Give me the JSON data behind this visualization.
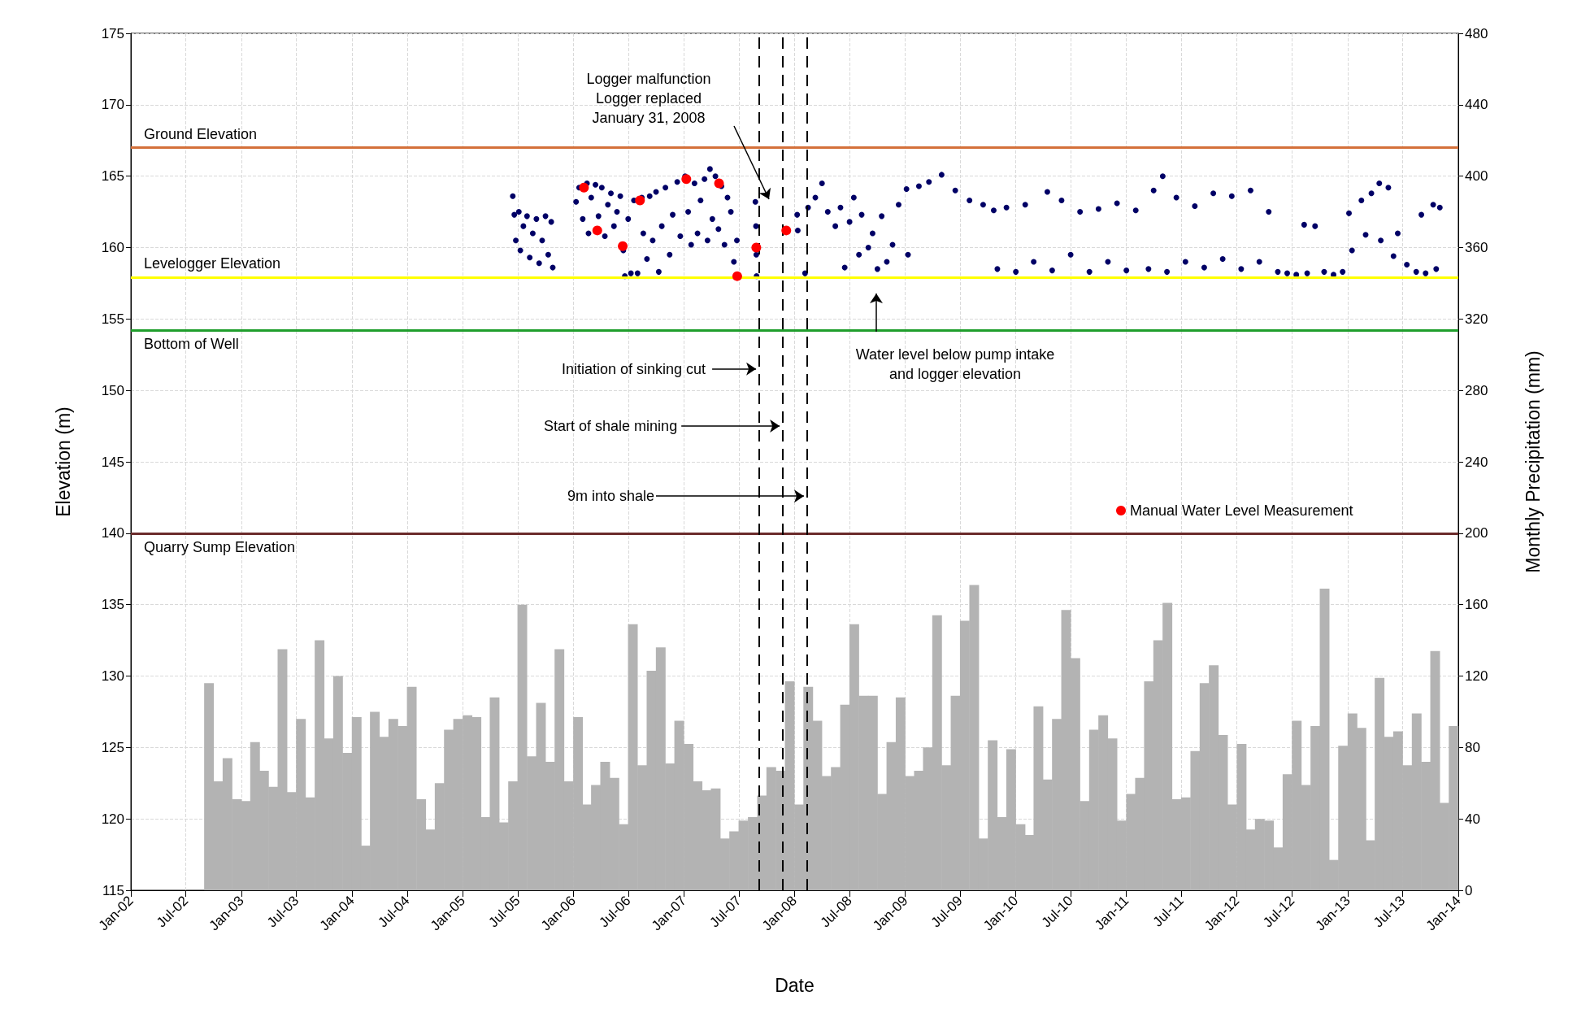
{
  "chart_data": {
    "type": "bar",
    "xlabel": "Date",
    "ylabel": "Elevation (m)",
    "y2label": "Monthly Precipitation (mm)",
    "xlim": [
      "2002-01-01",
      "2014-01-01"
    ],
    "xticks": [
      {
        "value": "2002-01",
        "label": "Jan-02"
      },
      {
        "value": "2002-07",
        "label": "Jul-02"
      },
      {
        "value": "2003-01",
        "label": "Jan-03"
      },
      {
        "value": "2003-07",
        "label": "Jul-03"
      },
      {
        "value": "2004-01",
        "label": "Jan-04"
      },
      {
        "value": "2004-07",
        "label": "Jul-04"
      },
      {
        "value": "2005-01",
        "label": "Jan-05"
      },
      {
        "value": "2005-07",
        "label": "Jul-05"
      },
      {
        "value": "2006-01",
        "label": "Jan-06"
      },
      {
        "value": "2006-07",
        "label": "Jul-06"
      },
      {
        "value": "2007-01",
        "label": "Jan-07"
      },
      {
        "value": "2007-07",
        "label": "Jul-07"
      },
      {
        "value": "2008-01",
        "label": "Jan-08"
      },
      {
        "value": "2008-07",
        "label": "Jul-08"
      },
      {
        "value": "2009-01",
        "label": "Jan-09"
      },
      {
        "value": "2009-07",
        "label": "Jul-09"
      },
      {
        "value": "2010-01",
        "label": "Jan-10"
      },
      {
        "value": "2010-07",
        "label": "Jul-10"
      },
      {
        "value": "2011-01",
        "label": "Jan-11"
      },
      {
        "value": "2011-07",
        "label": "Jul-11"
      },
      {
        "value": "2012-01",
        "label": "Jan-12"
      },
      {
        "value": "2012-07",
        "label": "Jul-12"
      },
      {
        "value": "2013-01",
        "label": "Jan-13"
      },
      {
        "value": "2013-07",
        "label": "Jul-13"
      },
      {
        "value": "2014-01",
        "label": "Jan-14"
      }
    ],
    "ylim": [
      115,
      175
    ],
    "yticks": [
      115,
      120,
      125,
      130,
      135,
      140,
      145,
      150,
      155,
      160,
      165,
      170,
      175
    ],
    "y2lim": [
      0,
      480
    ],
    "y2ticks": [
      0,
      40,
      80,
      120,
      160,
      200,
      240,
      280,
      320,
      360,
      400,
      440,
      480
    ],
    "grid": true,
    "legend": "right",
    "marker": "circle",
    "series": [
      {
        "axis": "y2",
        "color": "#b3b3b3",
        "x": [
          "2002-09",
          "2002-10",
          "2002-11",
          "2002-12",
          "2003-01",
          "2003-02",
          "2003-03",
          "2003-04",
          "2003-05",
          "2003-06",
          "2003-07",
          "2003-08",
          "2003-09",
          "2003-10",
          "2003-11",
          "2003-12",
          "2004-01",
          "2004-02",
          "2004-03",
          "2004-04",
          "2004-05",
          "2004-06",
          "2004-07",
          "2004-08",
          "2004-09",
          "2004-10",
          "2004-11",
          "2004-12",
          "2005-01",
          "2005-02",
          "2005-03",
          "2005-04",
          "2005-05",
          "2005-06",
          "2005-07",
          "2005-08",
          "2005-09",
          "2005-10",
          "2005-11",
          "2005-12",
          "2006-01",
          "2006-02",
          "2006-03",
          "2006-04",
          "2006-05",
          "2006-06",
          "2006-07",
          "2006-08",
          "2006-09",
          "2006-10",
          "2006-11",
          "2006-12",
          "2007-01",
          "2007-02",
          "2007-03",
          "2007-04",
          "2007-05",
          "2007-06",
          "2007-07",
          "2007-08",
          "2007-09",
          "2007-10",
          "2007-11",
          "2007-12",
          "2008-01",
          "2008-02",
          "2008-03",
          "2008-04",
          "2008-05",
          "2008-06",
          "2008-07",
          "2008-08",
          "2008-09",
          "2008-10",
          "2008-11",
          "2008-12",
          "2009-01",
          "2009-02",
          "2009-03",
          "2009-04",
          "2009-05",
          "2009-06",
          "2009-07",
          "2009-08",
          "2009-09",
          "2009-10",
          "2009-11",
          "2009-12",
          "2010-01",
          "2010-02",
          "2010-03",
          "2010-04",
          "2010-05",
          "2010-06",
          "2010-07",
          "2010-08",
          "2010-09",
          "2010-10",
          "2010-11",
          "2010-12",
          "2011-01",
          "2011-02",
          "2011-03",
          "2011-04",
          "2011-05",
          "2011-06",
          "2011-07",
          "2011-08",
          "2011-09",
          "2011-10",
          "2011-11",
          "2011-12",
          "2012-01",
          "2012-02",
          "2012-03",
          "2012-04",
          "2012-05",
          "2012-06",
          "2012-07",
          "2012-08",
          "2012-09",
          "2012-10",
          "2012-11",
          "2012-12",
          "2013-01",
          "2013-02",
          "2013-03",
          "2013-04",
          "2013-05",
          "2013-06",
          "2013-07",
          "2013-08",
          "2013-09",
          "2013-10",
          "2013-11",
          "2013-12"
        ],
        "values": [
          116,
          61,
          74,
          51,
          50,
          83,
          67,
          58,
          135,
          55,
          96,
          52,
          140,
          85,
          120,
          77,
          97,
          25,
          100,
          86,
          96,
          92,
          114,
          51,
          34,
          60,
          90,
          96,
          98,
          97,
          41,
          108,
          38,
          61,
          160,
          75,
          105,
          72,
          135,
          61,
          97,
          48,
          59,
          72,
          63,
          37,
          149,
          70,
          123,
          136,
          71,
          95,
          82,
          61,
          56,
          57,
          29,
          33,
          39,
          41,
          53,
          69,
          67,
          117,
          48,
          114,
          95,
          64,
          69,
          104,
          149,
          109,
          109,
          54,
          83,
          108,
          64,
          67,
          80,
          154,
          70,
          109,
          151,
          171,
          29,
          84,
          41,
          79,
          37,
          31,
          103,
          62,
          96,
          157,
          130,
          50,
          90,
          98,
          85,
          39,
          54,
          63,
          117,
          140,
          161,
          51,
          52,
          78,
          116,
          126,
          87,
          48,
          82,
          34,
          40,
          39,
          24,
          65,
          95,
          59,
          92,
          169,
          17,
          81,
          99,
          91,
          28,
          119,
          86,
          89,
          70,
          99,
          72,
          134,
          49,
          92
        ]
      },
      {
        "type": "scatter",
        "color": "#000066",
        "x": [
          "2005-06-15",
          "2005-06-20",
          "2005-06-25",
          "2005-07-05",
          "2005-07-10",
          "2005-07-20",
          "2005-08-01",
          "2005-08-10",
          "2005-08-20",
          "2005-09-01",
          "2005-09-10",
          "2005-09-20",
          "2005-10-01",
          "2005-10-10",
          "2005-10-20",
          "2005-10-25",
          "2006-01-10",
          "2006-01-20",
          "2006-02-01",
          "2006-02-15",
          "2006-02-20",
          "2006-03-01",
          "2006-03-15",
          "2006-03-25",
          "2006-04-05",
          "2006-04-15",
          "2006-04-25",
          "2006-05-05",
          "2006-05-15",
          "2006-05-25",
          "2006-06-05",
          "2006-06-15",
          "2006-06-20",
          "2006-07-01",
          "2006-07-10",
          "2006-07-20",
          "2006-08-01",
          "2006-08-15",
          "2006-08-20",
          "2006-09-01",
          "2006-09-10",
          "2006-09-20",
          "2006-10-01",
          "2006-10-10",
          "2006-10-20",
          "2006-11-01",
          "2006-11-15",
          "2006-11-25",
          "2006-12-10",
          "2006-12-20",
          "2007-01-05",
          "2007-01-15",
          "2007-01-25",
          "2007-02-05",
          "2007-02-15",
          "2007-02-25",
          "2007-03-10",
          "2007-03-20",
          "2007-03-28",
          "2007-04-05",
          "2007-04-15",
          "2007-04-25",
          "2007-05-05",
          "2007-05-15",
          "2007-05-25",
          "2007-06-05",
          "2007-06-15",
          "2007-06-25",
          "2007-08-25",
          "2007-08-27",
          "2007-08-28",
          "2007-08-29",
          "2008-01-10",
          "2008-01-12",
          "2008-02-05",
          "2008-02-15",
          "2008-03-10",
          "2008-04-01",
          "2008-04-20",
          "2008-05-15",
          "2008-06-01",
          "2008-06-15",
          "2008-07-01",
          "2008-07-15",
          "2008-08-01",
          "2008-08-10",
          "2008-09-01",
          "2008-09-15",
          "2008-10-01",
          "2008-10-15",
          "2008-11-01",
          "2008-11-20",
          "2008-12-10",
          "2009-01-05",
          "2009-01-10",
          "2009-02-15",
          "2009-03-20",
          "2009-05-01",
          "2009-06-15",
          "2009-08-01",
          "2009-09-15",
          "2009-10-20",
          "2009-11-01",
          "2009-12-01",
          "2010-01-01",
          "2010-02-01",
          "2010-03-01",
          "2010-04-15",
          "2010-05-01",
          "2010-06-01",
          "2010-07-01",
          "2010-08-01",
          "2010-09-01",
          "2010-10-01",
          "2010-11-01",
          "2010-12-01",
          "2011-01-01",
          "2011-02-01",
          "2011-03-15",
          "2011-04-01",
          "2011-05-01",
          "2011-05-15",
          "2011-06-15",
          "2011-07-15",
          "2011-08-15",
          "2011-09-15",
          "2011-10-15",
          "2011-11-15",
          "2011-12-15",
          "2012-01-15",
          "2012-02-15",
          "2012-03-15",
          "2012-04-15",
          "2012-05-15",
          "2012-06-15",
          "2012-07-15",
          "2012-08-10",
          "2012-08-20",
          "2012-09-15",
          "2012-10-15",
          "2012-11-15",
          "2012-12-15",
          "2013-01-05",
          "2013-01-15",
          "2013-02-15",
          "2013-03-01",
          "2013-03-20",
          "2013-04-15",
          "2013-04-20",
          "2013-05-15",
          "2013-06-01",
          "2013-06-15",
          "2013-07-15",
          "2013-08-15",
          "2013-09-01",
          "2013-09-15",
          "2013-10-10",
          "2013-10-20",
          "2013-11-01"
        ],
        "values": [
          163.6,
          162.3,
          160.5,
          162.5,
          159.8,
          161.5,
          162.2,
          159.3,
          161.0,
          162.0,
          158.9,
          160.5,
          162.2,
          159.5,
          161.8,
          158.6,
          163.2,
          164.2,
          162.0,
          164.5,
          161.0,
          163.5,
          164.4,
          162.2,
          164.2,
          160.8,
          163.0,
          163.8,
          161.5,
          162.5,
          163.6,
          159.8,
          158.0,
          162.0,
          158.2,
          163.3,
          158.2,
          163.5,
          161.0,
          159.2,
          163.6,
          160.5,
          163.9,
          158.3,
          161.5,
          164.2,
          159.5,
          162.3,
          164.6,
          160.8,
          165.0,
          162.5,
          160.2,
          164.5,
          161.0,
          163.3,
          164.8,
          160.5,
          165.5,
          162.0,
          165.0,
          161.3,
          164.3,
          160.2,
          163.5,
          162.5,
          159.0,
          160.5,
          163.2,
          161.5,
          159.5,
          158.0,
          162.3,
          161.2,
          158.2,
          162.8,
          163.5,
          164.5,
          162.5,
          161.5,
          162.8,
          158.6,
          161.8,
          163.5,
          159.5,
          162.3,
          160.0,
          161.0,
          158.5,
          162.2,
          159.0,
          160.2,
          163.0,
          164.1,
          159.5,
          164.3,
          164.6,
          165.1,
          164.0,
          163.3,
          163.0,
          162.6,
          158.5,
          162.8,
          158.3,
          163.0,
          159.0,
          163.9,
          158.4,
          163.3,
          159.5,
          162.5,
          158.3,
          162.7,
          159.0,
          163.1,
          158.4,
          162.6,
          158.5,
          164.0,
          165.0,
          158.3,
          163.5,
          159.0,
          162.9,
          158.6,
          163.8,
          159.2,
          163.6,
          158.5,
          164.0,
          159.0,
          162.5,
          158.3,
          158.2,
          158.1,
          161.6,
          158.2,
          161.5,
          158.3,
          158.1,
          158.3,
          162.4,
          159.8,
          163.3,
          160.9,
          163.8,
          164.5,
          160.5,
          164.2,
          159.4,
          161.0,
          158.8,
          158.3,
          162.3,
          158.2,
          163.0,
          158.5,
          162.8
        ]
      },
      {
        "type": "scatter",
        "name": "Manual Water Level Measurement",
        "color": "#ff0000",
        "x": [
          "2006-02-05",
          "2006-03-21",
          "2006-06-13",
          "2006-08-09",
          "2007-01-09",
          "2007-04-27",
          "2007-06-26",
          "2007-08-28",
          "2007-12-05"
        ],
        "values": [
          164.2,
          161.2,
          160.1,
          163.3,
          164.8,
          164.5,
          158.0,
          160.0,
          161.2
        ]
      }
    ],
    "ref_lines": [
      {
        "axis": "y",
        "value": 167,
        "label": "Ground Elevation",
        "color": "#d4703a"
      },
      {
        "axis": "y",
        "value": 157.9,
        "label": "Levelogger Elevation",
        "color": "#ffff00"
      },
      {
        "axis": "y",
        "value": 154.2,
        "label": "Bottom of Well",
        "color": "#1f9e2c"
      },
      {
        "axis": "y",
        "value": 140,
        "label": "Quarry Sump Elevation",
        "color": "#6b2b2b"
      },
      {
        "axis": "x",
        "value": "2007-09-07",
        "color": "#000000",
        "line_style": "dashed"
      },
      {
        "axis": "x",
        "value": "2007-11-24",
        "color": "#000000",
        "line_style": "dashed"
      },
      {
        "axis": "x",
        "value": "2008-02-12",
        "color": "#000000",
        "line_style": "dashed"
      }
    ],
    "annotations": [
      "Logger malfunction\nLogger replaced\nJanuary 31, 2008",
      {
        "text": "Initiation of sinking cut",
        "x": "2007-09-07",
        "y": 151.5
      },
      {
        "text": "Start of shale mining",
        "x": "2007-11-24",
        "y": 147.5
      },
      {
        "text": "9m into shale",
        "x": "2008-02-12",
        "y": 142.6
      },
      "Water level below pump intake\nand logger elevation"
    ]
  }
}
